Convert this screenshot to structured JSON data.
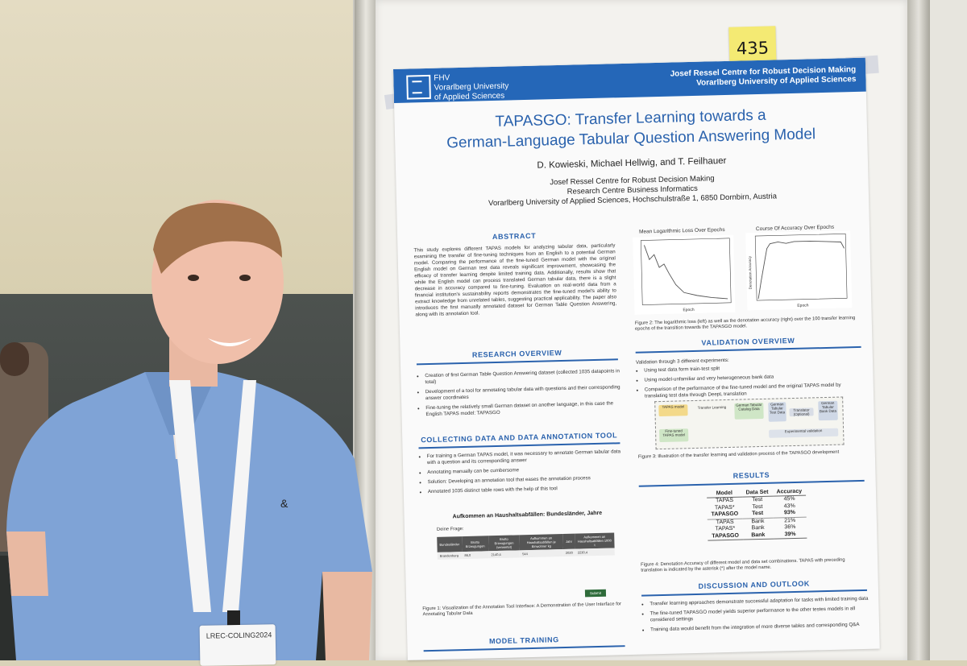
{
  "sticky_note": "435",
  "badge_text": "LREC-COLING2024",
  "header": {
    "uni_line1": "FHV",
    "uni_line2": "Vorarlberg University",
    "uni_line3": "of Applied Sciences",
    "centre_line1": "Josef Ressel Centre for Robust Decision Making",
    "centre_line2": "Vorarlberg University of Applied Sciences"
  },
  "title_line1": "TAPASGO: Transfer Learning towards a",
  "title_line2": "German-Language Tabular Question Answering Model",
  "authors": "D. Kowieski, Michael Hellwig, and T. Feilhauer",
  "affiliation": {
    "line1": "Josef Ressel Centre for Robust Decision Making",
    "line2": "Research Centre Business Informatics",
    "line3": "Vorarlberg University of Applied Sciences, Hochschulstraße 1, 6850 Dornbirn, Austria"
  },
  "abstract": {
    "heading": "Abstract",
    "text": "This study explores different TAPAS models for analyzing tabular data, particularly examining the transfer of fine-tuning techniques from an English to a potential German model. Comparing the performance of the fine-tuned German model with the original English model on German test data reveals significant improvement, showcasing the efficacy of transfer learning despite limited training data. Additionally, results show that while the English model can process translated German tabular data, there is a slight decrease in accuracy compared to fine-tuning. Evaluation on real-world data from a financial institution's sustainability reports demonstrates the fine-tuned model's ability to extract knowledge from unrelated tables, suggesting practical applicability. The paper also introduces the first manually annotated dataset for German Table Question Answering, along with its annotation tool."
  },
  "charts": {
    "left_title": "Mean Logarithmic Loss Over Epochs",
    "right_title": "Course Of Accuracy Over Epochs",
    "left_xlabel": "Epoch",
    "right_xlabel": "Epoch",
    "right_ylabel": "Denotation Accuracy",
    "caption": "Figure 2: The logarithmic loss (left) as well as the denotation accuracy (right) over the 100 transfer learning epochs of the transition towards the TAPASGO model."
  },
  "research_overview": {
    "heading": "Research Overview",
    "items": [
      "Creation of first German Table Question Answering dataset (collected 1035 datapoints in total)",
      "Development of a tool for annotating tabular data with questions and their corresponding answer coordinates",
      "Fine-tuning the relatively small German dataset on another language, in this case the English TAPAS model: TAPASGO"
    ]
  },
  "validation_overview": {
    "heading": "Validation Overview",
    "intro": "Validation through 3 different experiments:",
    "items": [
      "Using test data form train-test split",
      "Using model-unfamiliar and very heterogeneous bank data",
      "Comparison of the performance of the fine-tuned model and the original TAPAS model by translating test data through DeepL translation"
    ],
    "diagram": {
      "tapas": "TAPAS model",
      "transfer": "Transfer Learning",
      "catalog": "German Tabular Catalog Data",
      "test": "German Tabular Test Data",
      "translator": "Translator (Optional)",
      "bank": "German Tabular Bank Data",
      "finetuned": "Fine-tuned TAPAS model",
      "experimental": "Experimental validation"
    },
    "caption": "Figure 3: Illustration of the transfer learning and validation process of the TAPASGO development"
  },
  "collecting": {
    "heading": "Collecting Data and Data Annotation Tool",
    "items": [
      "For training a German TAPAS model, it was necessary to annotate German tabular data with a question and its corresponding answer",
      "Annotating manually can be cumbersome",
      "Solution: Developing an annotation tool that eases the annotation process",
      "Annotated 1035 distinct table rows with the help of this tool"
    ],
    "tool_title": "Aufkommen an Haushaltsabfällen: Bundesländer, Jahre",
    "tool_question_label": "Deine Frage:",
    "tool_columns": [
      "Bundesländer",
      "Brutto Erzeugungen",
      "Brutto Erzeugungen (verwertet)",
      "Aufkommen an Haushaltsabfällen je Einwohner kg",
      "Jahr",
      "Aufkommen an Haushaltsabfällen 1000 t"
    ],
    "tool_row": [
      "Brandenburg",
      "86,0",
      "2140,4",
      "544",
      "2020",
      "2230,4"
    ],
    "submit": "Submit",
    "caption": "Figure 1: Visualization of the Annotation Tool Interface: A Demonstration of the User Interface for Annotating Tabular Data"
  },
  "results": {
    "heading": "Results",
    "headers": [
      "Model",
      "Data Set",
      "Accuracy"
    ],
    "rows": [
      [
        "TAPAS",
        "Test",
        "45%"
      ],
      [
        "TAPAS*",
        "Test",
        "43%"
      ],
      [
        "TAPASGO",
        "Test",
        "93%"
      ],
      [
        "TAPAS",
        "Bank",
        "21%"
      ],
      [
        "TAPAS*",
        "Bank",
        "36%"
      ],
      [
        "TAPASGO",
        "Bank",
        "39%"
      ]
    ],
    "caption": "Figure 4: Denotation Accuracy of different model and data set combinations. TAPAS with preceding translation is indicated by the asterisk (*) after the model name."
  },
  "discussion": {
    "heading": "Discussion and Outlook",
    "items": [
      "Transfer learning approaches demonstrate successful adaptation for tasks with limited training data",
      "The fine-tuned TAPASGO model yields superior performance to the other testes models in all considered settings",
      "Training data would benefit from the integration of more diverse tables and corresponding Q&A"
    ]
  },
  "model_training": {
    "heading": "Model Training"
  },
  "colors": {
    "poster_blue": "#2567b8",
    "shirt_blue": "#7fa3d6",
    "sticky_yellow": "#f4ea73"
  }
}
